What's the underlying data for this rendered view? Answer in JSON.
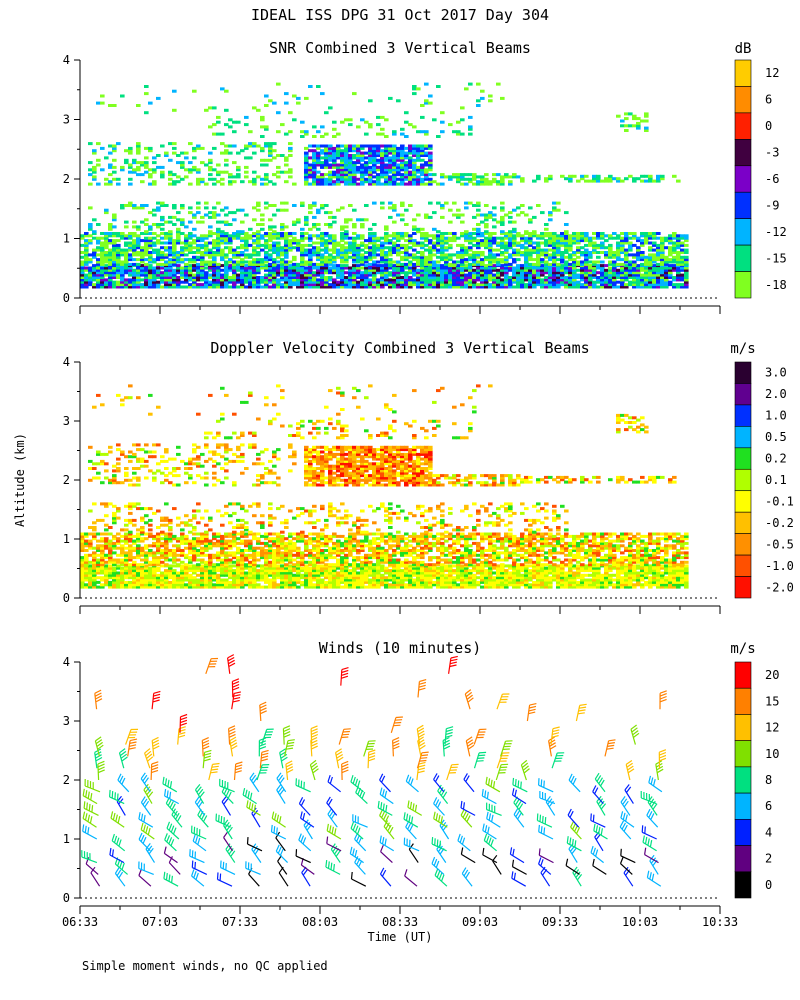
{
  "figure": {
    "title": "IDEAL ISS DPG  31 Oct 2017 Day 304",
    "ylabel": "Altitude (km)",
    "xlabel": "Time (UT)",
    "footnote": "Simple moment winds, no QC applied",
    "time_ticks": [
      "06:33",
      "07:03",
      "07:33",
      "08:03",
      "08:33",
      "09:03",
      "09:33",
      "10:03",
      "10:33"
    ],
    "altitude_ticks": [
      "0",
      "1",
      "2",
      "3",
      "4"
    ]
  },
  "chart_data": [
    {
      "type": "heatmap",
      "title": "SNR Combined 3 Vertical Beams",
      "unit": "dB",
      "x_range": [
        "06:33",
        "10:33"
      ],
      "ylim": [
        0,
        4
      ],
      "colorbar": {
        "labels": [
          "12",
          "6",
          "0",
          "-3",
          "-6",
          "-9",
          "-12",
          "-15",
          "-18"
        ],
        "colors": [
          "#ffcc00",
          "#ff8c00",
          "#ff2000",
          "#400040",
          "#7b00c8",
          "#0030ff",
          "#00b4ff",
          "#00e080",
          "#80ff20"
        ]
      }
    },
    {
      "type": "heatmap",
      "title": "Doppler Velocity Combined 3 Vertical Beams",
      "unit": "m/s",
      "x_range": [
        "06:33",
        "10:33"
      ],
      "ylim": [
        0,
        4
      ],
      "colorbar": {
        "labels": [
          "3.0",
          "2.0",
          "1.0",
          "0.5",
          "0.2",
          "0.1",
          "-0.1",
          "-0.2",
          "-0.5",
          "-1.0",
          "-2.0"
        ],
        "colors": [
          "#2a0030",
          "#600090",
          "#0030ff",
          "#00b4ff",
          "#20e020",
          "#b0ff00",
          "#ffff00",
          "#ffc000",
          "#ff9000",
          "#ff5000",
          "#ff1000"
        ]
      }
    },
    {
      "type": "scatter",
      "title": "Winds (10 minutes)",
      "unit": "m/s",
      "x_range": [
        "06:33",
        "10:33"
      ],
      "ylim": [
        0,
        4
      ],
      "colorbar": {
        "labels": [
          "20",
          "15",
          "12",
          "10",
          "8",
          "6",
          "4",
          "2",
          "0"
        ],
        "colors": [
          "#ff0000",
          "#ff8000",
          "#ffc000",
          "#80e000",
          "#00e080",
          "#00b4ff",
          "#0020ff",
          "#600080",
          "#000000"
        ]
      }
    }
  ]
}
